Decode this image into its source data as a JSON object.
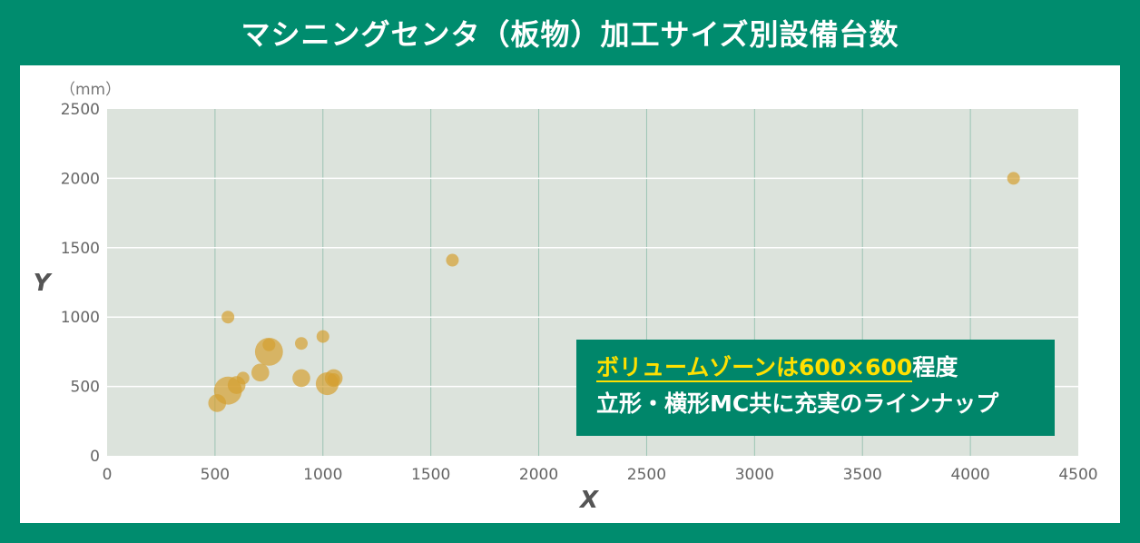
{
  "title": "マシニングセンタ（板物）加工サイズ別設備台数",
  "callout": {
    "highlight": "ボリュームゾーンは600×600",
    "rest": "程度",
    "line2": "立形・横形MC共に充実のラインナップ"
  },
  "colors": {
    "background": "#008c6e",
    "plot_area": "#dce3dc",
    "bubble": "#d4a030",
    "callout_bg": "#00866a",
    "highlight": "#ffe000"
  },
  "chart_data": {
    "type": "scatter",
    "title": "マシニングセンタ（板物）加工サイズ別設備台数",
    "xlabel": "X",
    "ylabel": "Y",
    "yunit": "（mm）",
    "xlim": [
      0,
      4500
    ],
    "ylim": [
      0,
      2500
    ],
    "xticks": [
      "0",
      "500",
      "1000",
      "1500",
      "2000",
      "2500",
      "3000",
      "3500",
      "4000",
      "4500"
    ],
    "yticks": [
      "0",
      "500",
      "1000",
      "1500",
      "2000",
      "2500"
    ],
    "grid": true,
    "points": [
      {
        "x": 560,
        "y": 1000,
        "count": 1
      },
      {
        "x": 510,
        "y": 380,
        "count": 2
      },
      {
        "x": 560,
        "y": 470,
        "count": 4
      },
      {
        "x": 600,
        "y": 510,
        "count": 2
      },
      {
        "x": 630,
        "y": 560,
        "count": 1
      },
      {
        "x": 710,
        "y": 600,
        "count": 2
      },
      {
        "x": 750,
        "y": 750,
        "count": 4
      },
      {
        "x": 750,
        "y": 800,
        "count": 1
      },
      {
        "x": 900,
        "y": 810,
        "count": 1
      },
      {
        "x": 900,
        "y": 560,
        "count": 2
      },
      {
        "x": 1000,
        "y": 860,
        "count": 1
      },
      {
        "x": 1020,
        "y": 520,
        "count": 3
      },
      {
        "x": 1050,
        "y": 560,
        "count": 2
      },
      {
        "x": 1050,
        "y": 550,
        "count": 1
      },
      {
        "x": 1600,
        "y": 1410,
        "count": 1
      },
      {
        "x": 4200,
        "y": 2000,
        "count": 1
      }
    ]
  }
}
